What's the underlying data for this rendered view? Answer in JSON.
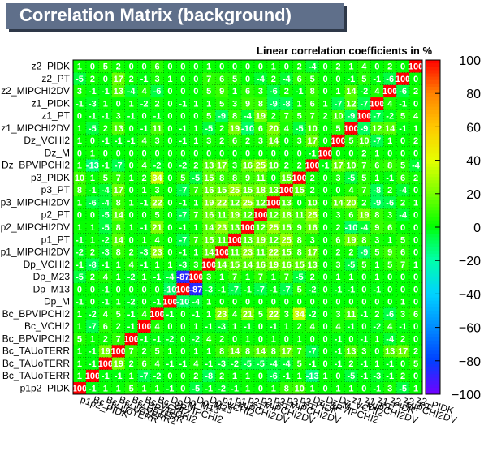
{
  "header": {
    "title": "Correlation Matrix (background)"
  },
  "colors": {
    "title_bg": "#5f6f8a",
    "grid": "#000000",
    "palette_note": "blue-to-red ROOT palette, green ~0"
  },
  "chart_data": {
    "type": "heatmap",
    "title": "Correlation Matrix (background)",
    "subtitle": "Linear correlation coefficients in %",
    "xlabels": [
      "p1p2_PIDK",
      "Bc_TAUoTERR",
      "Bc_TAUoTERR2",
      "Bc_TAUoTERR",
      "Bc_BPVIPCHI2",
      "Bc_VCHI2",
      "Bc_BPVIPCHI2",
      "Dp_M",
      "Dp_M13",
      "Dp_M23",
      "Dp_VCHI2",
      "p1_MIPCHI2DV",
      "p1_PT",
      "p2_MIPCHI2DV",
      "p2_PT",
      "p3_MIPCHI2DV",
      "p3_PT",
      "p3_PIDK",
      "Dz_BPVIPCHI2",
      "Dz_M",
      "Dz_VCHI2",
      "z1_MIPCHI2DV",
      "z1_PT",
      "z1_PIDK",
      "z2_MIPCHI2DV",
      "z2_PT",
      "z2_PIDK"
    ],
    "ylabels": [
      "p1p2_PIDK",
      "Bc_TAUoTERR",
      "Bc_TAUoTERR",
      "Bc_TAUoTERR",
      "Bc_BPVIPCHI2",
      "Bc_VCHI2",
      "Bc_BPVIPCHI2",
      "Dp_M",
      "Dp_M13",
      "Dp_M23",
      "Dp_VCHI2",
      "p1_MIPCHI2DV",
      "p1_PT",
      "p2_MIPCHI2DV",
      "p2_PT",
      "p3_MIPCHI2DV",
      "p3_PT",
      "p3_PIDK",
      "Dz_BPVIPCHI2",
      "Dz_M",
      "Dz_VCHI2",
      "z1_MIPCHI2DV",
      "z1_PT",
      "z1_PIDK",
      "z2_MIPCHI2DV",
      "z2_PT",
      "z2_PIDK"
    ],
    "zlim": [
      -100,
      100
    ],
    "colorbar_ticks": [
      "100",
      "80",
      "60",
      "40",
      "20",
      "0",
      "−20",
      "−40",
      "−60",
      "−80",
      "−100"
    ],
    "grid": true,
    "values": [
      [
        100,
        -1,
        1,
        1,
        5,
        1,
        1,
        -1,
        0,
        -5,
        -1,
        -2,
        -1,
        1,
        0,
        1,
        8,
        10,
        1,
        0,
        1,
        1,
        0,
        -1,
        3,
        -5,
        1
      ],
      [
        1,
        100,
        -1,
        -1,
        1,
        -7,
        -2,
        0,
        0,
        2,
        -8,
        2,
        1,
        1,
        0,
        -6,
        -1,
        1,
        -13,
        1,
        0,
        -5,
        -1,
        -3,
        -1,
        2,
        0
      ],
      [
        1,
        -1,
        100,
        19,
        2,
        6,
        4,
        -1,
        -1,
        4,
        -1,
        -3,
        -2,
        -5,
        -5,
        -4,
        -4,
        5,
        -1,
        0,
        -1,
        2,
        -1,
        1,
        -1,
        0,
        5
      ],
      [
        1,
        -1,
        19,
        100,
        7,
        2,
        5,
        1,
        0,
        1,
        1,
        8,
        14,
        8,
        14,
        8,
        17,
        7,
        -7,
        0,
        -1,
        13,
        3,
        0,
        13,
        17,
        2
      ],
      [
        5,
        1,
        2,
        7,
        100,
        -1,
        -1,
        -2,
        0,
        -2,
        4,
        2,
        0,
        1,
        0,
        1,
        0,
        1,
        0,
        0,
        -1,
        0,
        -1,
        1,
        -4,
        2,
        0
      ],
      [
        1,
        -7,
        6,
        2,
        -1,
        100,
        4,
        0,
        0,
        1,
        -1,
        -3,
        1,
        -1,
        0,
        -1,
        1,
        2,
        4,
        0,
        4,
        -1,
        0,
        -2,
        4,
        -1,
        0
      ],
      [
        1,
        -2,
        4,
        5,
        -1,
        4,
        100,
        -1,
        0,
        -1,
        1,
        23,
        4,
        21,
        5,
        22,
        3,
        34,
        -2,
        0,
        3,
        11,
        -1,
        2,
        -6,
        3,
        6
      ],
      [
        -1,
        0,
        -1,
        1,
        -2,
        0,
        -1,
        100,
        -10,
        -4,
        1,
        0,
        0,
        0,
        0,
        0,
        0,
        0,
        0,
        0,
        0,
        0,
        0,
        0,
        0,
        1,
        0
      ],
      [
        0,
        0,
        -1,
        0,
        0,
        0,
        0,
        -10,
        100,
        -87,
        -3,
        -1,
        -7,
        -1,
        -7,
        -1,
        -7,
        5,
        -2,
        0,
        -1,
        -1,
        0,
        -1,
        0,
        0,
        0
      ],
      [
        -5,
        2,
        4,
        1,
        -2,
        1,
        -1,
        -4,
        -87,
        100,
        3,
        1,
        7,
        1,
        7,
        1,
        7,
        -5,
        2,
        0,
        1,
        1,
        0,
        1,
        0,
        0,
        0
      ],
      [
        -1,
        -8,
        -1,
        1,
        4,
        -1,
        1,
        1,
        -3,
        3,
        100,
        14,
        15,
        14,
        16,
        19,
        16,
        15,
        13,
        0,
        3,
        -5,
        5,
        1,
        5,
        7,
        1
      ],
      [
        -2,
        2,
        -3,
        8,
        2,
        -3,
        23,
        0,
        -1,
        1,
        14,
        100,
        11,
        23,
        11,
        22,
        15,
        8,
        17,
        0,
        2,
        2,
        -9,
        5,
        9,
        6,
        0
      ],
      [
        -1,
        1,
        -2,
        14,
        0,
        1,
        4,
        0,
        -7,
        7,
        15,
        11,
        100,
        13,
        19,
        12,
        25,
        8,
        3,
        0,
        6,
        19,
        8,
        3,
        1,
        5,
        0
      ],
      [
        1,
        1,
        -5,
        8,
        1,
        -1,
        21,
        0,
        -1,
        1,
        14,
        23,
        13,
        100,
        12,
        25,
        15,
        9,
        16,
        0,
        2,
        -10,
        -4,
        9,
        6,
        0,
        0
      ],
      [
        0,
        0,
        -5,
        14,
        0,
        0,
        5,
        0,
        -7,
        7,
        16,
        11,
        19,
        12,
        100,
        12,
        18,
        11,
        25,
        0,
        3,
        6,
        19,
        8,
        3,
        -4,
        0
      ],
      [
        1,
        -6,
        -4,
        8,
        1,
        -1,
        22,
        0,
        -1,
        1,
        19,
        22,
        12,
        25,
        12,
        100,
        13,
        0,
        10,
        0,
        14,
        20,
        2,
        -9,
        -6,
        2,
        1
      ],
      [
        8,
        -1,
        -4,
        17,
        0,
        1,
        3,
        0,
        -7,
        7,
        16,
        15,
        25,
        15,
        18,
        13,
        100,
        15,
        2,
        0,
        0,
        4,
        7,
        -8,
        2,
        -4,
        0
      ],
      [
        10,
        1,
        5,
        7,
        1,
        2,
        34,
        0,
        5,
        -5,
        15,
        8,
        8,
        9,
        11,
        0,
        15,
        100,
        2,
        0,
        3,
        -5,
        5,
        1,
        -1,
        6,
        2
      ],
      [
        1,
        -13,
        -1,
        -7,
        0,
        4,
        -2,
        0,
        -2,
        2,
        13,
        17,
        3,
        16,
        25,
        10,
        2,
        2,
        100,
        -1,
        17,
        10,
        7,
        6,
        8,
        5,
        -4
      ],
      [
        0,
        1,
        0,
        0,
        0,
        0,
        0,
        0,
        0,
        0,
        0,
        0,
        0,
        0,
        0,
        0,
        0,
        0,
        -1,
        100,
        0,
        0,
        2,
        1,
        0,
        0,
        0
      ],
      [
        1,
        0,
        -1,
        -1,
        -1,
        4,
        3,
        0,
        -1,
        1,
        3,
        2,
        6,
        2,
        3,
        14,
        0,
        3,
        17,
        0,
        100,
        5,
        10,
        -7,
        1,
        0,
        2
      ],
      [
        1,
        -5,
        2,
        13,
        0,
        -1,
        11,
        0,
        -1,
        1,
        -5,
        2,
        19,
        -10,
        6,
        20,
        4,
        -5,
        10,
        0,
        5,
        100,
        -9,
        12,
        14,
        -1,
        1
      ],
      [
        0,
        -1,
        -1,
        3,
        -1,
        0,
        -1,
        0,
        0,
        0,
        5,
        -9,
        8,
        -4,
        19,
        2,
        7,
        5,
        7,
        2,
        10,
        -9,
        100,
        -7,
        -2,
        5,
        4
      ],
      [
        -1,
        -3,
        1,
        0,
        1,
        -2,
        2,
        0,
        -1,
        1,
        1,
        5,
        3,
        9,
        8,
        -9,
        -8,
        1,
        6,
        1,
        -7,
        12,
        -7,
        100,
        4,
        -1,
        0
      ],
      [
        3,
        -1,
        -1,
        13,
        -4,
        4,
        -6,
        0,
        0,
        0,
        5,
        9,
        1,
        6,
        3,
        -6,
        2,
        -1,
        8,
        0,
        1,
        14,
        -2,
        4,
        100,
        -6,
        2
      ],
      [
        -5,
        2,
        0,
        17,
        2,
        -1,
        3,
        1,
        0,
        0,
        7,
        6,
        5,
        0,
        -4,
        2,
        -4,
        6,
        5,
        0,
        0,
        -1,
        5,
        -1,
        -6,
        100,
        0
      ],
      [
        1,
        0,
        5,
        2,
        0,
        0,
        6,
        0,
        0,
        0,
        1,
        0,
        0,
        0,
        0,
        1,
        0,
        2,
        -4,
        0,
        2,
        1,
        4,
        0,
        2,
        0,
        100
      ]
    ]
  }
}
